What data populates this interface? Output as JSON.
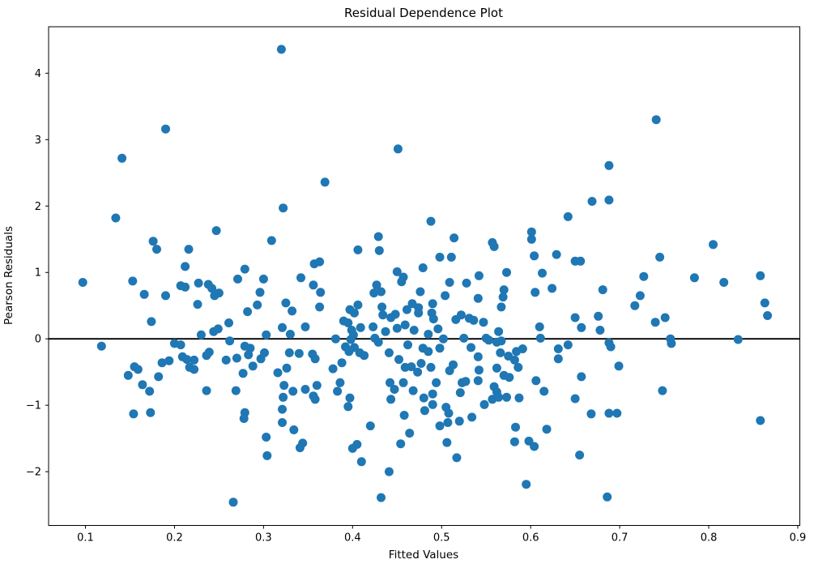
{
  "figure": {
    "background": "#ffffff",
    "text_color": "#000000"
  },
  "chart_data": {
    "type": "scatter",
    "title": "Residual Dependence Plot",
    "xlabel": "Fitted Values",
    "ylabel": "Pearson Residuals",
    "xlim": [
      0.0586,
      0.9023
    ],
    "ylim": [
      -2.81,
      4.7
    ],
    "x_ticks": [
      0.1,
      0.2,
      0.3,
      0.4,
      0.5,
      0.6,
      0.7,
      0.8,
      0.9
    ],
    "x_tick_labels": [
      "0.1",
      "0.2",
      "0.3",
      "0.4",
      "0.5",
      "0.6",
      "0.7",
      "0.8",
      "0.9"
    ],
    "y_ticks": [
      -2,
      -1,
      0,
      1,
      2,
      3,
      4
    ],
    "y_tick_labels": [
      "−2",
      "−1",
      "0",
      "1",
      "2",
      "3",
      "4"
    ],
    "grid": false,
    "legend": null,
    "marker_color": "#1f77b4",
    "marker_radius": 5.5,
    "zero_line": {
      "y": 0,
      "color": "#000000",
      "width": 1.8
    },
    "points": [
      [
        0.32,
        4.36
      ],
      [
        0.19,
        3.16
      ],
      [
        0.141,
        2.72
      ],
      [
        0.451,
        2.86
      ],
      [
        0.369,
        2.36
      ],
      [
        0.741,
        3.3
      ],
      [
        0.688,
        2.61
      ],
      [
        0.134,
        1.82
      ],
      [
        0.247,
        1.63
      ],
      [
        0.176,
        1.47
      ],
      [
        0.18,
        1.35
      ],
      [
        0.216,
        1.35
      ],
      [
        0.212,
        1.09
      ],
      [
        0.097,
        0.85
      ],
      [
        0.153,
        0.87
      ],
      [
        0.166,
        0.67
      ],
      [
        0.19,
        0.65
      ],
      [
        0.207,
        0.8
      ],
      [
        0.212,
        0.78
      ],
      [
        0.227,
        0.84
      ],
      [
        0.238,
        0.82
      ],
      [
        0.242,
        0.76
      ],
      [
        0.25,
        0.69
      ],
      [
        0.245,
        0.65
      ],
      [
        0.226,
        0.52
      ],
      [
        0.271,
        0.9
      ],
      [
        0.174,
        0.26
      ],
      [
        0.23,
        0.06
      ],
      [
        0.244,
        0.11
      ],
      [
        0.249,
        0.15
      ],
      [
        0.261,
        0.24
      ],
      [
        0.118,
        -0.11
      ],
      [
        0.2,
        -0.07
      ],
      [
        0.207,
        -0.09
      ],
      [
        0.262,
        -0.03
      ],
      [
        0.239,
        -0.2
      ],
      [
        0.236,
        -0.25
      ],
      [
        0.209,
        -0.27
      ],
      [
        0.194,
        -0.33
      ],
      [
        0.222,
        -0.32
      ],
      [
        0.322,
        1.97
      ],
      [
        0.309,
        1.48
      ],
      [
        0.279,
        1.05
      ],
      [
        0.3,
        0.9
      ],
      [
        0.296,
        0.7
      ],
      [
        0.293,
        0.51
      ],
      [
        0.282,
        0.41
      ],
      [
        0.342,
        0.92
      ],
      [
        0.357,
        1.13
      ],
      [
        0.363,
        1.16
      ],
      [
        0.356,
        0.81
      ],
      [
        0.364,
        0.7
      ],
      [
        0.325,
        0.54
      ],
      [
        0.332,
        0.42
      ],
      [
        0.347,
        0.18
      ],
      [
        0.321,
        0.17
      ],
      [
        0.33,
        0.07
      ],
      [
        0.303,
        0.06
      ],
      [
        0.363,
        0.48
      ],
      [
        0.406,
        1.34
      ],
      [
        0.429,
        1.54
      ],
      [
        0.43,
        1.33
      ],
      [
        0.45,
        1.01
      ],
      [
        0.457,
        0.93
      ],
      [
        0.455,
        0.86
      ],
      [
        0.479,
        1.07
      ],
      [
        0.476,
        0.71
      ],
      [
        0.427,
        0.81
      ],
      [
        0.432,
        0.71
      ],
      [
        0.424,
        0.69
      ],
      [
        0.397,
        0.44
      ],
      [
        0.402,
        0.39
      ],
      [
        0.406,
        0.51
      ],
      [
        0.433,
        0.48
      ],
      [
        0.434,
        0.36
      ],
      [
        0.39,
        0.27
      ],
      [
        0.395,
        0.24
      ],
      [
        0.399,
        0.13
      ],
      [
        0.401,
        0.06
      ],
      [
        0.398,
        -0.01
      ],
      [
        0.381,
        0.0
      ],
      [
        0.409,
        0.17
      ],
      [
        0.423,
        0.18
      ],
      [
        0.437,
        0.11
      ],
      [
        0.425,
        0.01
      ],
      [
        0.429,
        -0.05
      ],
      [
        0.443,
        0.32
      ],
      [
        0.448,
        0.37
      ],
      [
        0.45,
        0.16
      ],
      [
        0.459,
        0.21
      ],
      [
        0.467,
        0.53
      ],
      [
        0.474,
        0.47
      ],
      [
        0.474,
        0.39
      ],
      [
        0.461,
        0.44
      ],
      [
        0.469,
        0.13
      ],
      [
        0.479,
        -0.14
      ],
      [
        0.392,
        -0.12
      ],
      [
        0.402,
        -0.13
      ],
      [
        0.396,
        -0.19
      ],
      [
        0.408,
        -0.21
      ],
      [
        0.279,
        -0.11
      ],
      [
        0.285,
        -0.14
      ],
      [
        0.283,
        -0.24
      ],
      [
        0.301,
        -0.21
      ],
      [
        0.329,
        -0.21
      ],
      [
        0.34,
        -0.22
      ],
      [
        0.355,
        -0.23
      ],
      [
        0.358,
        -0.3
      ],
      [
        0.297,
        -0.3
      ],
      [
        0.462,
        -0.09
      ],
      [
        0.488,
        1.77
      ],
      [
        0.514,
        1.52
      ],
      [
        0.557,
        1.45
      ],
      [
        0.559,
        1.39
      ],
      [
        0.601,
        1.61
      ],
      [
        0.601,
        1.5
      ],
      [
        0.498,
        1.23
      ],
      [
        0.511,
        1.23
      ],
      [
        0.604,
        1.25
      ],
      [
        0.629,
        1.27
      ],
      [
        0.65,
        1.17
      ],
      [
        0.656,
        1.17
      ],
      [
        0.642,
        1.84
      ],
      [
        0.669,
        2.07
      ],
      [
        0.688,
        2.09
      ],
      [
        0.573,
        1.0
      ],
      [
        0.613,
        0.99
      ],
      [
        0.542,
        0.95
      ],
      [
        0.509,
        0.85
      ],
      [
        0.528,
        0.84
      ],
      [
        0.541,
        0.61
      ],
      [
        0.57,
        0.74
      ],
      [
        0.569,
        0.63
      ],
      [
        0.567,
        0.48
      ],
      [
        0.605,
        0.7
      ],
      [
        0.624,
        0.76
      ],
      [
        0.504,
        0.65
      ],
      [
        0.49,
        0.53
      ],
      [
        0.489,
        0.39
      ],
      [
        0.491,
        0.3
      ],
      [
        0.496,
        0.15
      ],
      [
        0.485,
        0.07
      ],
      [
        0.502,
        0.0
      ],
      [
        0.498,
        -0.14
      ],
      [
        0.485,
        -0.19
      ],
      [
        0.516,
        0.29
      ],
      [
        0.522,
        0.36
      ],
      [
        0.531,
        0.31
      ],
      [
        0.536,
        0.28
      ],
      [
        0.547,
        0.25
      ],
      [
        0.525,
        0.01
      ],
      [
        0.564,
        0.11
      ],
      [
        0.55,
        0.01
      ],
      [
        0.553,
        -0.02
      ],
      [
        0.562,
        -0.05
      ],
      [
        0.567,
        -0.03
      ],
      [
        0.541,
        -0.27
      ],
      [
        0.566,
        -0.21
      ],
      [
        0.575,
        -0.26
      ],
      [
        0.582,
        -0.32
      ],
      [
        0.584,
        -0.19
      ],
      [
        0.591,
        -0.15
      ],
      [
        0.61,
        0.18
      ],
      [
        0.611,
        0.01
      ],
      [
        0.631,
        -0.15
      ],
      [
        0.642,
        -0.09
      ],
      [
        0.65,
        0.32
      ],
      [
        0.657,
        0.17
      ],
      [
        0.676,
        0.34
      ],
      [
        0.678,
        0.13
      ],
      [
        0.681,
        0.74
      ],
      [
        0.688,
        -0.06
      ],
      [
        0.69,
        -0.12
      ],
      [
        0.631,
        -0.3
      ],
      [
        0.805,
        1.42
      ],
      [
        0.745,
        1.23
      ],
      [
        0.727,
        0.94
      ],
      [
        0.784,
        0.92
      ],
      [
        0.817,
        0.85
      ],
      [
        0.858,
        0.95
      ],
      [
        0.723,
        0.65
      ],
      [
        0.717,
        0.5
      ],
      [
        0.863,
        0.54
      ],
      [
        0.866,
        0.35
      ],
      [
        0.74,
        0.25
      ],
      [
        0.751,
        0.32
      ],
      [
        0.757,
        0.0
      ],
      [
        0.758,
        -0.07
      ],
      [
        0.833,
        -0.01
      ],
      [
        0.148,
        -0.55
      ],
      [
        0.155,
        -0.42
      ],
      [
        0.159,
        -0.46
      ],
      [
        0.164,
        -0.69
      ],
      [
        0.172,
        -0.79
      ],
      [
        0.182,
        -0.57
      ],
      [
        0.186,
        -0.36
      ],
      [
        0.214,
        -0.31
      ],
      [
        0.217,
        -0.43
      ],
      [
        0.222,
        -0.46
      ],
      [
        0.258,
        -0.32
      ],
      [
        0.27,
        -0.29
      ],
      [
        0.236,
        -0.78
      ],
      [
        0.269,
        -0.78
      ],
      [
        0.154,
        -1.13
      ],
      [
        0.173,
        -1.11
      ],
      [
        0.266,
        -2.46
      ],
      [
        0.277,
        -0.52
      ],
      [
        0.288,
        -0.41
      ],
      [
        0.316,
        -0.51
      ],
      [
        0.326,
        -0.44
      ],
      [
        0.323,
        -0.7
      ],
      [
        0.322,
        -0.88
      ],
      [
        0.333,
        -0.79
      ],
      [
        0.347,
        -0.76
      ],
      [
        0.36,
        -0.7
      ],
      [
        0.356,
        -0.86
      ],
      [
        0.358,
        -0.91
      ],
      [
        0.383,
        -0.79
      ],
      [
        0.386,
        -0.66
      ],
      [
        0.397,
        -0.89
      ],
      [
        0.395,
        -1.02
      ],
      [
        0.321,
        -1.06
      ],
      [
        0.279,
        -1.11
      ],
      [
        0.278,
        -1.2
      ],
      [
        0.321,
        -1.26
      ],
      [
        0.334,
        -1.37
      ],
      [
        0.303,
        -1.48
      ],
      [
        0.304,
        -1.76
      ],
      [
        0.344,
        -1.57
      ],
      [
        0.341,
        -1.64
      ],
      [
        0.405,
        -1.59
      ],
      [
        0.4,
        -1.65
      ],
      [
        0.41,
        -1.85
      ],
      [
        0.42,
        -1.31
      ],
      [
        0.441,
        -2.0
      ],
      [
        0.432,
        -2.39
      ],
      [
        0.442,
        -0.66
      ],
      [
        0.447,
        -0.76
      ],
      [
        0.443,
        -0.91
      ],
      [
        0.458,
        -1.15
      ],
      [
        0.464,
        -1.42
      ],
      [
        0.454,
        -1.58
      ],
      [
        0.452,
        -0.31
      ],
      [
        0.459,
        -0.43
      ],
      [
        0.466,
        -0.42
      ],
      [
        0.473,
        -0.5
      ],
      [
        0.477,
        -0.37
      ],
      [
        0.388,
        -0.36
      ],
      [
        0.378,
        -0.45
      ],
      [
        0.413,
        -0.25
      ],
      [
        0.488,
        -0.43
      ],
      [
        0.509,
        -0.48
      ],
      [
        0.542,
        -0.47
      ],
      [
        0.562,
        -0.44
      ],
      [
        0.57,
        -0.55
      ],
      [
        0.576,
        -0.58
      ],
      [
        0.586,
        -0.43
      ],
      [
        0.657,
        -0.57
      ],
      [
        0.523,
        -0.66
      ],
      [
        0.527,
        -0.64
      ],
      [
        0.521,
        -0.81
      ],
      [
        0.49,
        -0.83
      ],
      [
        0.494,
        -0.66
      ],
      [
        0.559,
        -0.72
      ],
      [
        0.562,
        -0.8
      ],
      [
        0.557,
        -0.91
      ],
      [
        0.564,
        -0.88
      ],
      [
        0.573,
        -0.88
      ],
      [
        0.587,
        -0.89
      ],
      [
        0.606,
        -0.63
      ],
      [
        0.615,
        -0.79
      ],
      [
        0.65,
        -0.9
      ],
      [
        0.505,
        -1.03
      ],
      [
        0.508,
        -1.12
      ],
      [
        0.498,
        -1.31
      ],
      [
        0.507,
        -1.26
      ],
      [
        0.52,
        -1.24
      ],
      [
        0.534,
        -1.18
      ],
      [
        0.548,
        -0.99
      ],
      [
        0.668,
        -1.13
      ],
      [
        0.688,
        -1.12
      ],
      [
        0.481,
        -1.08
      ],
      [
        0.48,
        -0.89
      ],
      [
        0.583,
        -1.33
      ],
      [
        0.618,
        -1.36
      ],
      [
        0.582,
        -1.55
      ],
      [
        0.598,
        -1.54
      ],
      [
        0.604,
        -1.62
      ],
      [
        0.506,
        -1.56
      ],
      [
        0.517,
        -1.79
      ],
      [
        0.655,
        -1.75
      ],
      [
        0.595,
        -2.19
      ],
      [
        0.686,
        -2.38
      ],
      [
        0.699,
        -0.41
      ],
      [
        0.748,
        -0.78
      ],
      [
        0.697,
        -1.12
      ],
      [
        0.858,
        -1.23
      ],
      [
        0.457,
        -0.66
      ],
      [
        0.468,
        -0.78
      ],
      [
        0.513,
        -0.39
      ],
      [
        0.533,
        -0.13
      ],
      [
        0.49,
        -0.99
      ],
      [
        0.541,
        -0.63
      ],
      [
        0.441,
        -0.21
      ]
    ]
  }
}
